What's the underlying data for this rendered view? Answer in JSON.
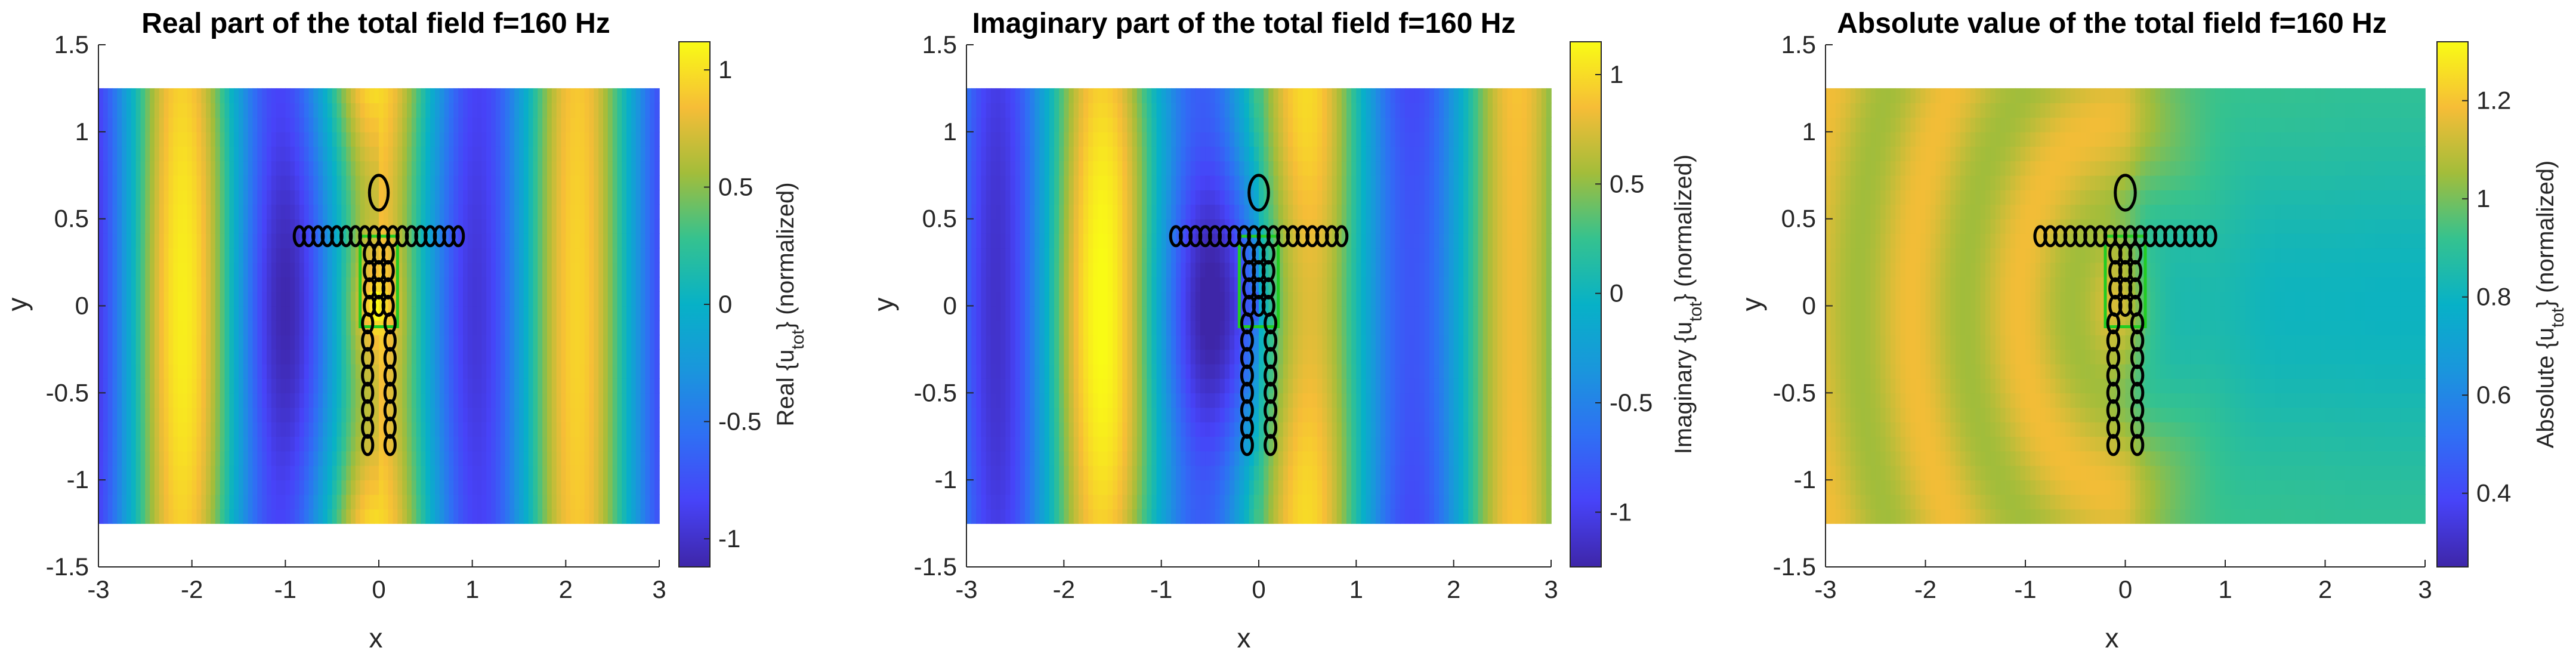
{
  "chart_data": [
    {
      "type": "heatmap",
      "title": "Real part of the total field f=160 Hz",
      "xlabel": "x",
      "ylabel": "y",
      "xlim": [
        -3,
        3
      ],
      "ylim": [
        -1.5,
        1.5
      ],
      "xticks": [
        "-3",
        "-2",
        "-1",
        "0",
        "1",
        "2",
        "3"
      ],
      "yticks": [
        "1.5",
        "1",
        "0.5",
        "0",
        "-0.5",
        "-1",
        "-1.5"
      ],
      "field_extent": {
        "x": [
          -3,
          3
        ],
        "y": [
          -1.25,
          1.25
        ]
      },
      "colorbar": {
        "label_pre": "Real {u",
        "label_sub": "tot",
        "label_post": "} (normalized)",
        "range": [
          -1.12,
          1.12
        ],
        "ticks": [
          "1",
          "0.5",
          "0",
          "-0.5",
          "-1"
        ]
      },
      "colormap": "parula",
      "field_kind": "real"
    },
    {
      "type": "heatmap",
      "title": "Imaginary part of the total field f=160 Hz",
      "xlabel": "x",
      "ylabel": "y",
      "xlim": [
        -3,
        3
      ],
      "ylim": [
        -1.5,
        1.5
      ],
      "xticks": [
        "-3",
        "-2",
        "-1",
        "0",
        "1",
        "2",
        "3"
      ],
      "yticks": [
        "1.5",
        "1",
        "0.5",
        "0",
        "-0.5",
        "-1",
        "-1.5"
      ],
      "field_extent": {
        "x": [
          -3,
          3
        ],
        "y": [
          -1.25,
          1.25
        ]
      },
      "colorbar": {
        "label_pre": "Imaginary {u",
        "label_sub": "tot",
        "label_post": "} (normalized)",
        "range": [
          -1.25,
          1.15
        ],
        "ticks": [
          "1",
          "0.5",
          "0",
          "-0.5",
          "-1"
        ]
      },
      "colormap": "parula",
      "field_kind": "imag"
    },
    {
      "type": "heatmap",
      "title": "Absolute value of the total field f=160 Hz",
      "xlabel": "x",
      "ylabel": "y",
      "xlim": [
        -3,
        3
      ],
      "ylim": [
        -1.5,
        1.5
      ],
      "xticks": [
        "-3",
        "-2",
        "-1",
        "0",
        "1",
        "2",
        "3"
      ],
      "yticks": [
        "1.5",
        "1",
        "0.5",
        "0",
        "-0.5",
        "-1",
        "-1.5"
      ],
      "field_extent": {
        "x": [
          -3,
          3
        ],
        "y": [
          -1.25,
          1.25
        ]
      },
      "colorbar": {
        "label_pre": "Absolute {u",
        "label_sub": "tot",
        "label_post": "} (normalized)",
        "range": [
          0.25,
          1.32
        ],
        "ticks": [
          "1.2",
          "1",
          "0.8",
          "0.6",
          "0.4"
        ]
      },
      "colormap": "parula",
      "field_kind": "abs"
    }
  ],
  "colors": {
    "outline": "#000000",
    "scatterer_edge": "#22cc22",
    "axis": "#262626"
  }
}
